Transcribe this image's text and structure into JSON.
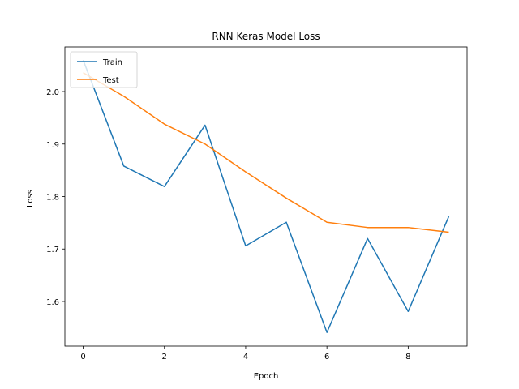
{
  "chart_data": {
    "type": "line",
    "title": "RNN Keras Model Loss",
    "xlabel": "Epoch",
    "ylabel": "Loss",
    "x": [
      0,
      1,
      2,
      3,
      4,
      5,
      6,
      7,
      8,
      9
    ],
    "xlim": [
      -0.45,
      9.45
    ],
    "ylim": [
      1.515,
      2.085
    ],
    "xticks": [
      0,
      2,
      4,
      6,
      8
    ],
    "yticks": [
      1.6,
      1.7,
      1.8,
      1.9,
      2.0
    ],
    "grid": false,
    "legend": "top-left",
    "series": [
      {
        "name": "Train",
        "color": "#1f77b4",
        "values": [
          2.06,
          1.858,
          1.819,
          1.936,
          1.706,
          1.751,
          1.541,
          1.72,
          1.581,
          1.762
        ]
      },
      {
        "name": "Test",
        "color": "#ff7f0e",
        "values": [
          2.036,
          1.991,
          1.938,
          1.9,
          1.847,
          1.797,
          1.751,
          1.741,
          1.741,
          1.732
        ]
      }
    ]
  }
}
